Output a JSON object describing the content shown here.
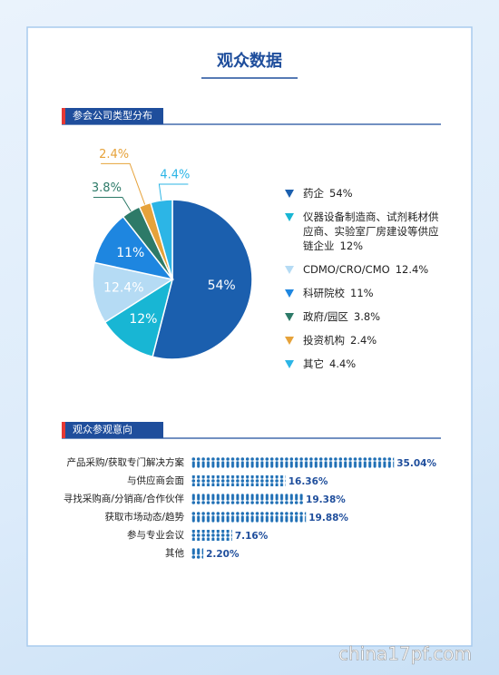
{
  "page_title": "观众数据",
  "watermark": "china17pf.com",
  "chart_data": [
    {
      "type": "pie",
      "title": "参会公司类型分布",
      "categories": [
        "药企",
        "仪器设备制造商、试剂耗材供应商、实验室厂房建设等供应链企业",
        "CDMO/CRO/CMO",
        "科研院校",
        "政府/园区",
        "投资机构",
        "其它"
      ],
      "values": [
        54,
        12,
        12.4,
        11,
        3.8,
        2.4,
        4.4
      ],
      "value_labels": [
        "54%",
        "12%",
        "12.4%",
        "11%",
        "3.8%",
        "2.4%",
        "4.4%"
      ],
      "colors": [
        "#1b5fae",
        "#18b6d4",
        "#b5dbf4",
        "#1e86e0",
        "#2d7a68",
        "#e6a23a",
        "#2cb5e6"
      ]
    },
    {
      "type": "pictogram",
      "title": "观众参观意向",
      "categories": [
        "产品采购/获取专门解决方案",
        "与供应商会面",
        "寻找采购商/分销商/合作伙伴",
        "获取市场动态/趋势",
        "参与专业会议",
        "其他"
      ],
      "values": [
        35.04,
        16.36,
        19.38,
        19.88,
        7.16,
        2.2
      ],
      "value_labels": [
        "35.04%",
        "16.36%",
        "19.38%",
        "19.88%",
        "7.16%",
        "2.20%"
      ],
      "color": "#1f6fb5"
    }
  ]
}
